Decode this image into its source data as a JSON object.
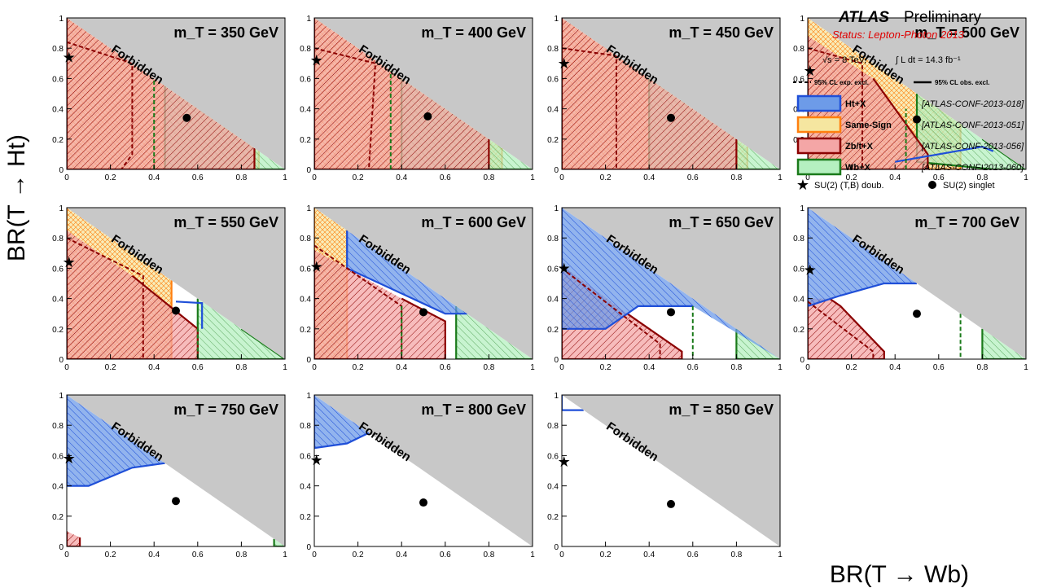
{
  "chart_data": {
    "type": "area",
    "title": "",
    "xlabel": "BR(T → Wb)",
    "ylabel": "BR(T → Ht)",
    "xlim": [
      0,
      1
    ],
    "ylim": [
      0,
      1
    ],
    "x_ticks": [
      "0",
      "0.2",
      "0.4",
      "0.6",
      "0.8",
      "1"
    ],
    "y_ticks": [
      "0",
      "0.2",
      "0.4",
      "0.6",
      "0.8",
      "1"
    ],
    "forbidden_label": "Forbidden",
    "experiment": "ATLAS",
    "preliminary": "Preliminary",
    "status": "Status: Lepton-Photon 2013",
    "energy": "√s = 8 TeV,",
    "lumi": "∫ L dt = 14.3 fb⁻¹",
    "line_legend": {
      "expected": "95% CL exp. excl.",
      "observed": "95% CL obs. excl."
    },
    "analyses": [
      {
        "name": "Ht+X",
        "ref": "[ATLAS-CONF-2013-018]",
        "color": "#1f4fd8",
        "fill": "#6d9be8"
      },
      {
        "name": "Same-Sign",
        "ref": "[ATLAS-CONF-2013-051]",
        "color": "#ff7f0e",
        "fill": "#f5e6a0"
      },
      {
        "name": "Zb/t+X",
        "ref": "[ATLAS-CONF-2013-056]",
        "color": "#8b0000",
        "fill": "#f4a6a6"
      },
      {
        "name": "Wb+X",
        "ref": "[ATLAS-CONF-2013-060]",
        "color": "#1a7a1a",
        "fill": "#b5f0c0"
      }
    ],
    "markers": [
      {
        "name": "SU(2) (T,B) doub.",
        "symbol": "star"
      },
      {
        "name": "SU(2) singlet",
        "symbol": "circle"
      }
    ],
    "panels": [
      {
        "mass": "m_T = 350 GeV",
        "doublet": [
          0.01,
          0.74
        ],
        "singlet": [
          0.55,
          0.34
        ],
        "zb": [
          [
            0,
            1
          ],
          [
            0,
            0
          ],
          [
            0.86,
            0
          ],
          [
            0.86,
            0.14
          ]
        ],
        "ss": [
          [
            0,
            1
          ],
          [
            0,
            0
          ],
          [
            0.88,
            0
          ],
          [
            0.88,
            0.12
          ]
        ],
        "wb": [
          [
            0.45,
            0.55
          ],
          [
            0.45,
            0
          ],
          [
            1,
            0
          ]
        ],
        "ht": [],
        "zb_exp": [
          [
            0,
            0.84
          ],
          [
            0.3,
            0.7
          ],
          [
            0.3,
            0.1
          ],
          [
            0.25,
            0
          ]
        ],
        "wb_exp": [
          [
            0.4,
            0
          ],
          [
            0.4,
            0.6
          ]
        ]
      },
      {
        "mass": "m_T = 400 GeV",
        "doublet": [
          0.01,
          0.72
        ],
        "singlet": [
          0.52,
          0.35
        ],
        "zb": [
          [
            0,
            1
          ],
          [
            0,
            0
          ],
          [
            0.8,
            0
          ],
          [
            0.8,
            0.2
          ]
        ],
        "ss": [
          [
            0,
            1
          ],
          [
            0,
            0
          ],
          [
            0.86,
            0
          ],
          [
            0.86,
            0.14
          ]
        ],
        "wb": [
          [
            0.4,
            0.6
          ],
          [
            0.4,
            0
          ],
          [
            1,
            0
          ]
        ],
        "ht": [],
        "zb_exp": [
          [
            0,
            0.8
          ],
          [
            0.28,
            0.7
          ],
          [
            0.25,
            0
          ]
        ],
        "wb_exp": [
          [
            0.35,
            0
          ],
          [
            0.35,
            0.65
          ]
        ]
      },
      {
        "mass": "m_T = 450 GeV",
        "doublet": [
          0.01,
          0.7
        ],
        "singlet": [
          0.5,
          0.34
        ],
        "zb": [
          [
            0,
            1
          ],
          [
            0,
            0
          ],
          [
            0.8,
            0
          ],
          [
            0.8,
            0.2
          ]
        ],
        "ss": [
          [
            0,
            1
          ],
          [
            0,
            0
          ],
          [
            0.85,
            0
          ],
          [
            0.85,
            0.15
          ]
        ],
        "wb": [
          [
            0.4,
            0.6
          ],
          [
            0.4,
            0
          ],
          [
            1,
            0
          ]
        ],
        "ht": [],
        "zb_exp": [
          [
            0,
            0.8
          ],
          [
            0.25,
            0.75
          ],
          [
            0.25,
            0
          ]
        ],
        "wb_exp": []
      },
      {
        "mass": "m_T = 500 GeV",
        "doublet": [
          0.01,
          0.65
        ],
        "singlet": [
          0.5,
          0.33
        ],
        "zb": [
          [
            0,
            0.88
          ],
          [
            0,
            0
          ],
          [
            0.55,
            0
          ],
          [
            0.55,
            0.1
          ],
          [
            0.3,
            0.6
          ]
        ],
        "ss": [
          [
            0,
            1
          ],
          [
            0,
            0
          ],
          [
            0.7,
            0
          ],
          [
            0.7,
            0.3
          ]
        ],
        "wb": [
          [
            0.5,
            0.5
          ],
          [
            0.5,
            0.05
          ],
          [
            0.85,
            0
          ],
          [
            1,
            0
          ],
          [
            0.8,
            0.2
          ]
        ],
        "ht": [
          [
            0.4,
            0.05
          ],
          [
            0.8,
            0.15
          ],
          [
            0.85,
            0.12
          ]
        ],
        "zb_exp": [
          [
            0,
            0.8
          ],
          [
            0.25,
            0.7
          ],
          [
            0.25,
            0
          ]
        ],
        "wb_exp": [
          [
            0.45,
            0
          ],
          [
            0.45,
            0.4
          ]
        ]
      },
      {
        "mass": "m_T = 550 GeV",
        "doublet": [
          0.01,
          0.64
        ],
        "singlet": [
          0.5,
          0.32
        ],
        "zb": [
          [
            0,
            0.85
          ],
          [
            0,
            0
          ],
          [
            0.6,
            0
          ],
          [
            0.6,
            0.2
          ],
          [
            0.3,
            0.55
          ]
        ],
        "ss": [
          [
            0,
            1
          ],
          [
            0,
            0
          ],
          [
            0.48,
            0
          ],
          [
            0.48,
            0.52
          ]
        ],
        "wb": [
          [
            0.6,
            0.4
          ],
          [
            0.6,
            0
          ],
          [
            1,
            0
          ],
          [
            0.8,
            0.2
          ]
        ],
        "ht": [
          [
            0.5,
            0.38
          ],
          [
            0.62,
            0.37
          ],
          [
            0.62,
            0.2
          ]
        ],
        "zb_exp": [
          [
            0,
            0.8
          ],
          [
            0.35,
            0.55
          ],
          [
            0.35,
            0
          ]
        ],
        "wb_exp": [
          [
            0.6,
            0.25
          ],
          [
            0.6,
            0
          ]
        ]
      },
      {
        "mass": "m_T = 600 GeV",
        "doublet": [
          0.01,
          0.61
        ],
        "singlet": [
          0.5,
          0.31
        ],
        "zb": [
          [
            0,
            0.72
          ],
          [
            0,
            0
          ],
          [
            0.6,
            0
          ],
          [
            0.6,
            0.25
          ],
          [
            0.4,
            0.4
          ]
        ],
        "ss": [
          [
            0,
            1
          ],
          [
            0,
            0
          ],
          [
            0.15,
            0
          ],
          [
            0.15,
            0.85
          ]
        ],
        "wb": [
          [
            0.65,
            0.35
          ],
          [
            0.65,
            0
          ],
          [
            1,
            0
          ]
        ],
        "ht": [
          [
            0.15,
            0.85
          ],
          [
            0.15,
            0.6
          ],
          [
            0.6,
            0.3
          ],
          [
            0.7,
            0.3
          ]
        ],
        "zb_exp": [
          [
            0,
            0.75
          ],
          [
            0.4,
            0.35
          ],
          [
            0.4,
            0
          ]
        ],
        "wb_exp": [
          [
            0.4,
            0.35
          ],
          [
            0.4,
            0
          ]
        ]
      },
      {
        "mass": "m_T = 650 GeV",
        "doublet": [
          0.01,
          0.6
        ],
        "singlet": [
          0.5,
          0.31
        ],
        "zb": [
          [
            0,
            0.62
          ],
          [
            0,
            0
          ],
          [
            0.55,
            0
          ],
          [
            0.55,
            0.05
          ],
          [
            0.3,
            0.3
          ]
        ],
        "ss": [],
        "wb": [
          [
            0.8,
            0.2
          ],
          [
            0.8,
            0
          ],
          [
            1,
            0
          ]
        ],
        "ht": [
          [
            0,
            1
          ],
          [
            0,
            0.2
          ],
          [
            0.2,
            0.2
          ],
          [
            0.35,
            0.35
          ],
          [
            0.6,
            0.35
          ]
        ],
        "zb_exp": [
          [
            0,
            0.6
          ],
          [
            0.45,
            0.1
          ],
          [
            0.45,
            0
          ]
        ],
        "wb_exp": [
          [
            0.6,
            0.35
          ],
          [
            0.6,
            0
          ]
        ]
      },
      {
        "mass": "m_T = 700 GeV",
        "doublet": [
          0.01,
          0.59
        ],
        "singlet": [
          0.5,
          0.3
        ],
        "zb": [
          [
            0,
            0.4
          ],
          [
            0,
            0
          ],
          [
            0.35,
            0
          ],
          [
            0.35,
            0.05
          ],
          [
            0.15,
            0.35
          ],
          [
            0.1,
            0.4
          ]
        ],
        "ss": [],
        "wb": [
          [
            0.8,
            0.2
          ],
          [
            0.8,
            0
          ],
          [
            1,
            0
          ]
        ],
        "ht": [
          [
            0,
            1
          ],
          [
            0,
            0.35
          ],
          [
            0.15,
            0.42
          ],
          [
            0.35,
            0.5
          ],
          [
            0.5,
            0.5
          ]
        ],
        "zb_exp": [
          [
            0,
            0.38
          ],
          [
            0.3,
            0.05
          ],
          [
            0.3,
            0
          ]
        ],
        "wb_exp": [
          [
            0.7,
            0.3
          ],
          [
            0.7,
            0
          ]
        ]
      },
      {
        "mass": "m_T = 750 GeV",
        "doublet": [
          0.01,
          0.58
        ],
        "singlet": [
          0.5,
          0.3
        ],
        "zb": [
          [
            0,
            0.1
          ],
          [
            0,
            0
          ],
          [
            0.06,
            0
          ],
          [
            0.06,
            0.06
          ]
        ],
        "ss": [],
        "wb": [
          [
            0.95,
            0.05
          ],
          [
            0.95,
            0
          ],
          [
            1,
            0
          ]
        ],
        "ht": [
          [
            0,
            1
          ],
          [
            0,
            0.4
          ],
          [
            0.1,
            0.4
          ],
          [
            0.3,
            0.52
          ],
          [
            0.45,
            0.55
          ]
        ],
        "zb_exp": [],
        "wb_exp": []
      },
      {
        "mass": "m_T = 800 GeV",
        "doublet": [
          0.01,
          0.57
        ],
        "singlet": [
          0.5,
          0.29
        ],
        "zb": [],
        "ss": [],
        "wb": [],
        "ht": [
          [
            0,
            1
          ],
          [
            0,
            0.65
          ],
          [
            0.15,
            0.68
          ],
          [
            0.25,
            0.75
          ]
        ],
        "zb_exp": [],
        "wb_exp": []
      },
      {
        "mass": "m_T = 850 GeV",
        "doublet": [
          0.01,
          0.56
        ],
        "singlet": [
          0.5,
          0.28
        ],
        "zb": [],
        "ss": [],
        "wb": [],
        "ht": [
          [
            0,
            1
          ],
          [
            0,
            0.9
          ],
          [
            0.1,
            0.9
          ]
        ],
        "zb_exp": [],
        "wb_exp": []
      }
    ]
  }
}
